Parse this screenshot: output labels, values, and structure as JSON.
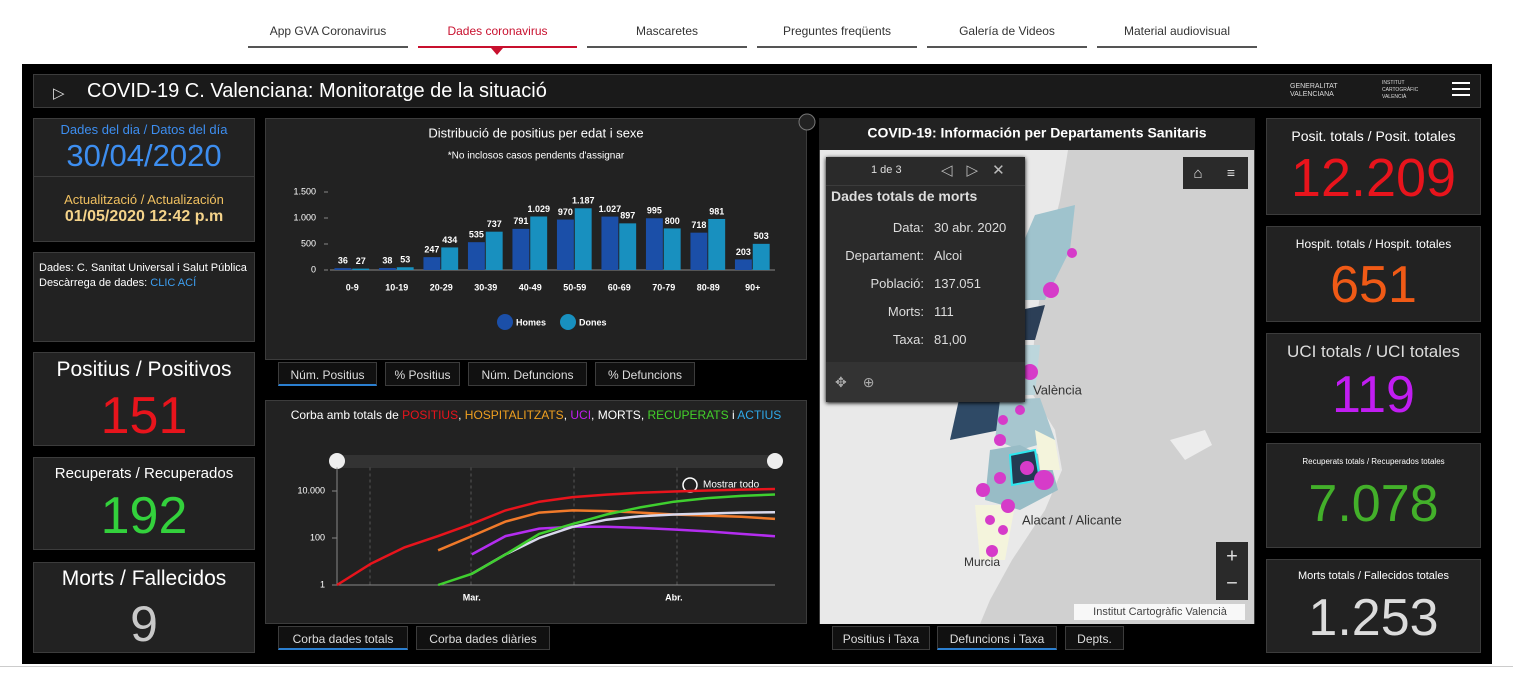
{
  "nav": [
    "App GVA Coronavirus",
    "Dades coronavirus",
    "Mascaretes",
    "Preguntes freqüents",
    "Galería de Videos",
    "Material audiovisual"
  ],
  "header": {
    "title": "COVID-19 C. Valenciana: Monitoratge de la situació",
    "logo_gva": [
      "GENERALITAT",
      "VALENCIANA"
    ],
    "logo_icv": [
      "INSTITUT",
      "CARTOGRÀFIC",
      "VALENCIÀ"
    ]
  },
  "date_panel": {
    "label": "Dades del dia / Datos del día",
    "date": "30/04/2020",
    "update_label": "Actualització / Actualización",
    "update": "01/05/2020 12:42 p.m"
  },
  "source_panel": {
    "text": "Dades: C. Sanitat Universal i Salut Pública",
    "download": "Descàrrega de dades:",
    "link": "CLIC ACÍ"
  },
  "daily": [
    {
      "label": "Positius / Positivos",
      "value": 151,
      "color": "#e8141c"
    },
    {
      "label": "Recuperats / Recuperados",
      "value": 192,
      "color": "#33d13c"
    },
    {
      "label": "Morts / Fallecidos",
      "value": 9,
      "color": "#c8c8c8"
    }
  ],
  "totals": [
    {
      "label": "Posit. totals / Posit. totales",
      "value": "12.209",
      "color": "#e8141c"
    },
    {
      "label": "Hospit. totals / Hospit. totales",
      "value": "651",
      "color": "#f05a16"
    },
    {
      "label": "UCI totals / UCI totales",
      "value": "119",
      "color": "#c11df2"
    },
    {
      "label": "Recuperats totals / Recuperados totales",
      "value": "7.078",
      "color": "#43b02a"
    },
    {
      "label": "Morts totals / Fallecidos totales",
      "value": "1.253",
      "color": "#dcdcdc"
    }
  ],
  "chart_data": [
    {
      "type": "bar",
      "title": "Distribució de positius per edat i sexe",
      "subtitle": "*No inclosos casos pendents d'assignar",
      "categories": [
        "0-9",
        "10-19",
        "20-29",
        "30-39",
        "40-49",
        "50-59",
        "60-69",
        "70-79",
        "80-89",
        "90+"
      ],
      "series": [
        {
          "name": "Homes",
          "color": "#1b4fa8",
          "values": [
            36,
            38,
            247,
            535,
            791,
            970,
            1027,
            995,
            718,
            203
          ],
          "value_labels": [
            "36",
            "38",
            "247",
            "535",
            "791",
            "970",
            "1.027",
            "995",
            "718",
            "203"
          ]
        },
        {
          "name": "Dones",
          "color": "#1890bf",
          "values": [
            27,
            53,
            434,
            737,
            1029,
            1187,
            897,
            800,
            981,
            503
          ],
          "value_labels": [
            "27",
            "53",
            "434",
            "737",
            "1.029",
            "1.187",
            "897",
            "800",
            "981",
            "503"
          ]
        }
      ],
      "ylim": [
        0,
        1500
      ],
      "yticks": [
        0,
        500,
        {
          "value": 1000,
          "label": "1.000"
        },
        {
          "value": 1500,
          "label": "1.500"
        }
      ]
    },
    {
      "type": "line",
      "title_parts": [
        {
          "text": "Corba amb totals de ",
          "color": "#ffffff"
        },
        {
          "text": "POSITIUS",
          "color": "#e8141c"
        },
        {
          "text": ", ",
          "color": "#ffffff"
        },
        {
          "text": "HOSPITALITZATS",
          "color": "#f0a020"
        },
        {
          "text": ", ",
          "color": "#ffffff"
        },
        {
          "text": "UCI",
          "color": "#c11df2"
        },
        {
          "text": ", MORTS, ",
          "color": "#ffffff"
        },
        {
          "text": "RECUPERATS",
          "color": "#43d12a"
        },
        {
          "text": " i ",
          "color": "#ffffff"
        },
        {
          "text": "ACTIUS",
          "color": "#2ea8e8"
        }
      ],
      "reset": "Mostrar todo",
      "categories": [
        null,
        null,
        null,
        null,
        "Mar.",
        null,
        null,
        null,
        null,
        null,
        "Abr.",
        null,
        null,
        null
      ],
      "log": true,
      "ylim": [
        1,
        100000
      ],
      "yticks": [
        1,
        100,
        {
          "value": 10000,
          "label": "10.000"
        }
      ],
      "series": [
        {
          "name": "POSITIUS",
          "color": "#e8141c",
          "values": [
            1,
            8,
            40,
            120,
            400,
            1500,
            3500,
            5500,
            7000,
            8500,
            9500,
            10500,
            11500,
            12209
          ]
        },
        {
          "name": "HOSPITALITZATS",
          "color": "#f07a2a",
          "values": [
            null,
            null,
            null,
            30,
            120,
            500,
            1200,
            1500,
            1400,
            1200,
            1000,
            900,
            800,
            651
          ]
        },
        {
          "name": "UCI",
          "color": "#b42df0",
          "values": [
            null,
            null,
            null,
            null,
            20,
            120,
            250,
            300,
            300,
            270,
            230,
            190,
            150,
            119
          ]
        },
        {
          "name": "MORTS",
          "color": "#d8d8ec",
          "values": [
            null,
            null,
            null,
            null,
            3,
            20,
            100,
            300,
            600,
            850,
            1000,
            1100,
            1200,
            1253
          ]
        },
        {
          "name": "RECUPERATS",
          "color": "#3fcf2f",
          "values": [
            null,
            null,
            null,
            1,
            3,
            20,
            150,
            400,
            1000,
            2000,
            3500,
            5000,
            6200,
            7078
          ]
        }
      ]
    }
  ],
  "bar_tabs": [
    "Núm. Positius",
    "% Positius",
    "Núm. Defuncions",
    "% Defuncions"
  ],
  "line_tabs": [
    "Corba dades totals",
    "Corba dades diàries"
  ],
  "map": {
    "title": "COVID-19: Información per Departaments Sanitaris",
    "popup": {
      "pager": "1 de 3",
      "title": "Dades totals de morts",
      "fields": [
        {
          "label": "Data:",
          "value": "30 abr. 2020"
        },
        {
          "label": "Departament:",
          "value": "Alcoi"
        },
        {
          "label": "Població:",
          "value": "137.051"
        },
        {
          "label": "Morts:",
          "value": 111
        },
        {
          "label": "Taxa:",
          "value": "81,00"
        }
      ]
    },
    "places": [
      "València",
      "Alacant / Alicante",
      "Murcia"
    ],
    "attribution": "Institut Cartogràfic Valencià",
    "tabs": [
      "Positius i Taxa",
      "Defuncions i Taxa",
      "Depts."
    ]
  }
}
